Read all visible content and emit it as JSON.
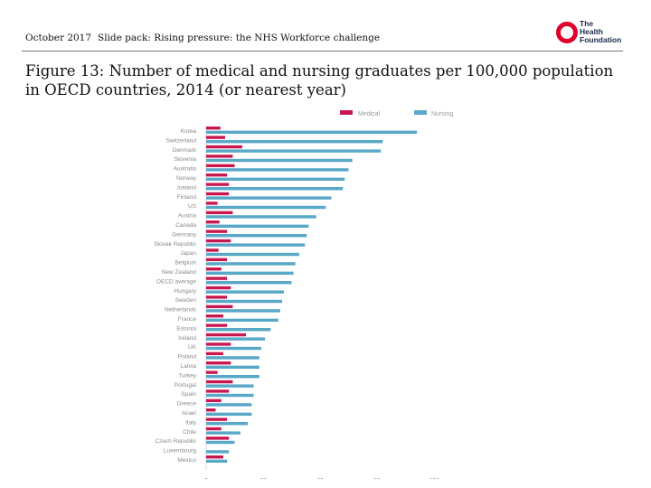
{
  "header": {
    "date": "October 2017",
    "slide_pack": "Slide pack: Rising pressure: the NHS Workforce challenge",
    "logo_lines": [
      "The",
      "Health",
      "Foundation"
    ]
  },
  "page_title": "Figure 13: Number of medical and nursing graduates per 100,000 population in OECD countries, 2014 (or nearest year)",
  "colors": {
    "medical": "#c8174f",
    "nursing": "#58a8c8",
    "accent": "#e0002b"
  },
  "chart_data": {
    "type": "bar",
    "orientation": "horizontal",
    "title": "",
    "xlabel": "",
    "ylabel": "",
    "xlim": [
      0,
      120
    ],
    "x_ticks": [
      "0",
      "30",
      "60",
      "90",
      "120"
    ],
    "legend_position": "top-right",
    "categories": [
      "Korea",
      "Switzerland",
      "Denmark",
      "Slovenia",
      "Australia",
      "Norway",
      "Iceland",
      "Finland",
      "US",
      "Austria",
      "Canada",
      "Germany",
      "Slovak Republic",
      "Japan",
      "Belgium",
      "New Zealand",
      "OECD average",
      "Hungary",
      "Sweden",
      "Netherlands",
      "France",
      "Estonia",
      "Ireland",
      "UK",
      "Poland",
      "Latvia",
      "Turkey",
      "Portugal",
      "Spain",
      "Greece",
      "Israel",
      "Italy",
      "Chile",
      "Czech Republic",
      "Luxembourg",
      "Mexico"
    ],
    "series": [
      {
        "name": "Medical",
        "values": [
          7.5,
          10,
          19,
          14,
          15,
          11,
          12,
          12,
          6,
          14,
          7,
          11,
          13,
          6.5,
          11,
          8,
          11,
          13,
          11,
          14,
          9,
          11,
          21,
          13,
          9,
          13,
          6,
          14,
          12,
          8,
          5,
          11,
          8,
          12,
          0,
          9
        ]
      },
      {
        "name": "Nursing",
        "values": [
          111,
          93,
          92,
          77,
          75,
          73,
          72,
          66,
          63,
          58,
          54,
          53,
          52,
          49,
          47,
          46,
          45,
          41,
          40,
          39,
          38,
          34,
          31,
          29,
          28,
          28,
          28,
          25,
          25,
          24,
          24,
          22,
          18,
          15,
          12,
          11
        ]
      }
    ]
  }
}
